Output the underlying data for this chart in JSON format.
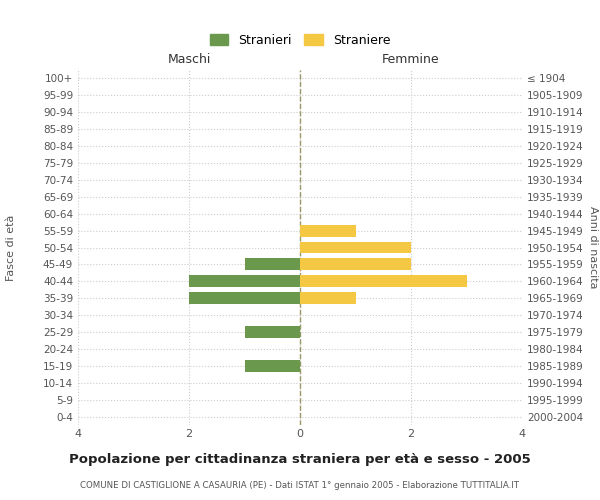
{
  "age_groups": [
    "0-4",
    "5-9",
    "10-14",
    "15-19",
    "20-24",
    "25-29",
    "30-34",
    "35-39",
    "40-44",
    "45-49",
    "50-54",
    "55-59",
    "60-64",
    "65-69",
    "70-74",
    "75-79",
    "80-84",
    "85-89",
    "90-94",
    "95-99",
    "100+"
  ],
  "birth_years": [
    "2000-2004",
    "1995-1999",
    "1990-1994",
    "1985-1989",
    "1980-1984",
    "1975-1979",
    "1970-1974",
    "1965-1969",
    "1960-1964",
    "1955-1959",
    "1950-1954",
    "1945-1949",
    "1940-1944",
    "1935-1939",
    "1930-1934",
    "1925-1929",
    "1920-1924",
    "1915-1919",
    "1910-1914",
    "1905-1909",
    "≤ 1904"
  ],
  "males": [
    0,
    0,
    0,
    1,
    0,
    1,
    0,
    2,
    2,
    1,
    0,
    0,
    0,
    0,
    0,
    0,
    0,
    0,
    0,
    0,
    0
  ],
  "females": [
    0,
    0,
    0,
    0,
    0,
    0,
    0,
    1,
    3,
    2,
    2,
    1,
    0,
    0,
    0,
    0,
    0,
    0,
    0,
    0,
    0
  ],
  "male_color": "#6a994e",
  "female_color": "#f4c842",
  "male_label": "Stranieri",
  "female_label": "Straniere",
  "title": "Popolazione per cittadinanza straniera per età e sesso - 2005",
  "subtitle": "COMUNE DI CASTIGLIONE A CASAURIA (PE) - Dati ISTAT 1° gennaio 2005 - Elaborazione TUTTITALIA.IT",
  "header_left": "Maschi",
  "header_right": "Femmine",
  "ylabel_left": "Fasce di età",
  "ylabel_right": "Anni di nascita",
  "xlim": 4,
  "background_color": "#ffffff",
  "grid_color": "#cccccc"
}
